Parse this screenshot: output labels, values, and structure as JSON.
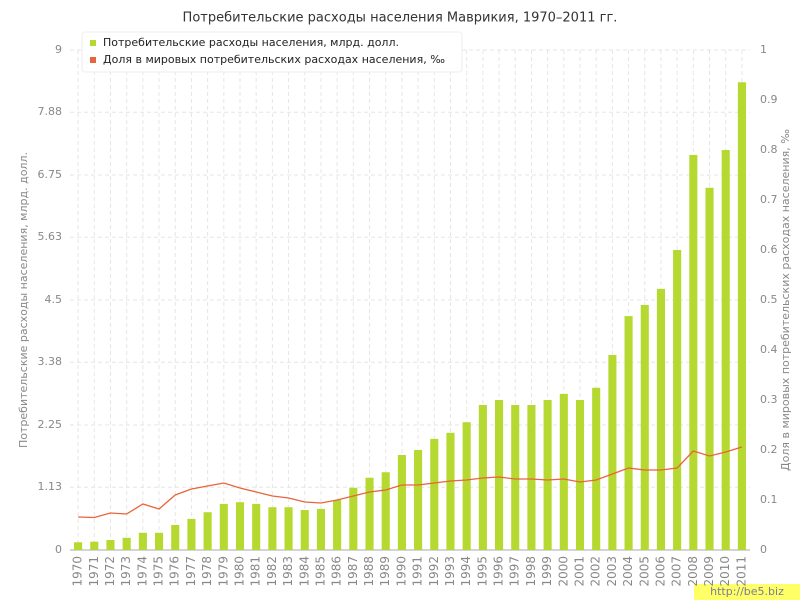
{
  "chart_data": {
    "type": "bar-line",
    "title": "Потребительские расходы населения Маврикия, 1970–2011 гг.",
    "y_label": "Потребительские расходы населения, млрд. долл.",
    "y2_label": "Доля в мировых потребительских расходах населения, ‰",
    "watermark": "http://be5.biz",
    "categories": [
      "1970",
      "1971",
      "1972",
      "1973",
      "1974",
      "1975",
      "1976",
      "1977",
      "1978",
      "1979",
      "1980",
      "1981",
      "1982",
      "1983",
      "1984",
      "1985",
      "1986",
      "1987",
      "1988",
      "1989",
      "1990",
      "1991",
      "1992",
      "1993",
      "1994",
      "1995",
      "1996",
      "1997",
      "1998",
      "1999",
      "2000",
      "2001",
      "2002",
      "2003",
      "2004",
      "2005",
      "2006",
      "2007",
      "2008",
      "2009",
      "2010",
      "2011"
    ],
    "series": [
      {
        "name": "Потребительские расходы населения, млрд. долл.",
        "color": "#b5d930",
        "type": "bar",
        "values": [
          0.14,
          0.15,
          0.18,
          0.22,
          0.31,
          0.31,
          0.45,
          0.56,
          0.68,
          0.83,
          0.86,
          0.83,
          0.77,
          0.77,
          0.72,
          0.74,
          0.9,
          1.12,
          1.3,
          1.4,
          1.71,
          1.8,
          2.0,
          2.11,
          2.3,
          2.61,
          2.7,
          2.61,
          2.61,
          2.7,
          2.81,
          2.7,
          2.92,
          3.51,
          4.21,
          4.41,
          4.7,
          5.4,
          7.11,
          6.52,
          7.2,
          8.42
        ]
      },
      {
        "name": "Доля в мировых потребительских расходах населения, ‰",
        "color": "#e8643c",
        "type": "line",
        "axis": "y2",
        "values": [
          0.066,
          0.065,
          0.074,
          0.072,
          0.092,
          0.082,
          0.11,
          0.122,
          0.128,
          0.134,
          0.124,
          0.116,
          0.108,
          0.104,
          0.096,
          0.094,
          0.1,
          0.108,
          0.116,
          0.12,
          0.13,
          0.13,
          0.134,
          0.138,
          0.14,
          0.144,
          0.146,
          0.142,
          0.142,
          0.14,
          0.142,
          0.136,
          0.14,
          0.152,
          0.164,
          0.16,
          0.16,
          0.164,
          0.198,
          0.188,
          0.196,
          0.206
        ]
      }
    ],
    "ylim": [
      0,
      9
    ],
    "yticks": [
      0,
      1.13,
      2.25,
      3.38,
      4.5,
      5.63,
      6.75,
      7.88,
      9
    ],
    "y2lim": [
      0,
      1
    ],
    "y2ticks": [
      0,
      0.1,
      0.2,
      0.3,
      0.4,
      0.5,
      0.6,
      0.7,
      0.8,
      0.9,
      1
    ],
    "grid": true,
    "legend": "top-left"
  }
}
